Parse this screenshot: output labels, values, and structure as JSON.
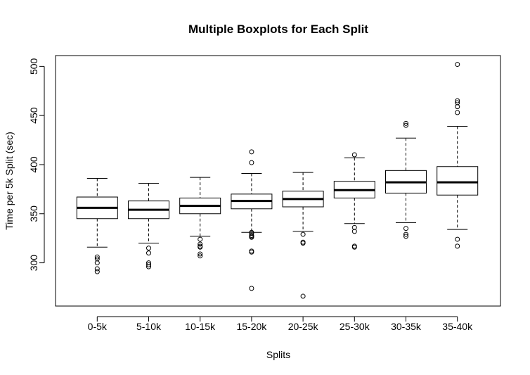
{
  "chart_data": {
    "type": "boxplot",
    "title": "Multiple Boxplots for Each Split",
    "xlabel": "Splits",
    "ylabel": "Time per 5k Split (sec)",
    "ylim": [
      256,
      511
    ],
    "yticks": [
      300,
      350,
      400,
      450,
      500
    ],
    "grid": false,
    "categories": [
      "0-5k",
      "5-10k",
      "10-15k",
      "15-20k",
      "20-25k",
      "25-30k",
      "30-35k",
      "35-40k"
    ],
    "boxes": [
      {
        "whisker_low": 316,
        "q1": 345,
        "median": 356,
        "q3": 367,
        "whisker_high": 386,
        "outliers": [
          306,
          304,
          300,
          294,
          291
        ]
      },
      {
        "whisker_low": 320,
        "q1": 345,
        "median": 354,
        "q3": 363,
        "whisker_high": 381,
        "outliers": [
          315,
          310,
          300,
          298,
          296
        ]
      },
      {
        "whisker_low": 327,
        "q1": 350,
        "median": 358,
        "q3": 366,
        "whisker_high": 387,
        "outliers": [
          324,
          319,
          317,
          316,
          309,
          307
        ]
      },
      {
        "whisker_low": 331,
        "q1": 355,
        "median": 363,
        "q3": 370,
        "whisker_high": 391,
        "outliers": [
          413,
          402,
          331,
          330,
          328,
          327,
          326,
          312,
          311,
          274
        ]
      },
      {
        "whisker_low": 332,
        "q1": 357,
        "median": 365,
        "q3": 373,
        "whisker_high": 392,
        "outliers": [
          329,
          321,
          320,
          266
        ]
      },
      {
        "whisker_low": 340,
        "q1": 366,
        "median": 374,
        "q3": 383,
        "whisker_high": 407,
        "outliers": [
          410,
          336,
          332,
          317,
          316
        ]
      },
      {
        "whisker_low": 341,
        "q1": 371,
        "median": 382,
        "q3": 394,
        "whisker_high": 427,
        "outliers": [
          442,
          440,
          335,
          329,
          327
        ]
      },
      {
        "whisker_low": 334,
        "q1": 369,
        "median": 382,
        "q3": 398,
        "whisker_high": 439,
        "outliers": [
          502,
          465,
          463,
          459,
          453,
          324,
          317
        ]
      }
    ]
  }
}
